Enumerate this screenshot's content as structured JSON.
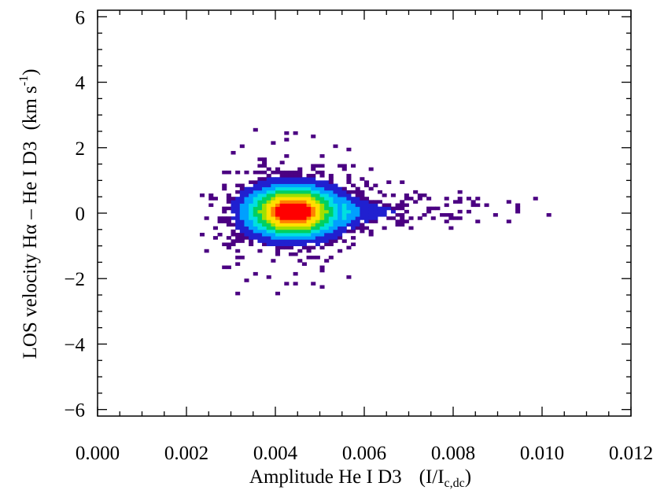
{
  "chart_data": {
    "type": "heatmap",
    "xlabel": "Amplitude He I D3",
    "xlabel_unit": {
      "main": "(I/I",
      "sub": "c,dc",
      "close": ")"
    },
    "ylabel": "LOS velocity Hα – He I D3",
    "ylabel_unit": {
      "main": "(km s",
      "sup": "-1",
      "close": ")"
    },
    "xlim": [
      0.0,
      0.012
    ],
    "ylim": [
      -6.2,
      6.2
    ],
    "x_ticks": [
      "0.000",
      "0.002",
      "0.004",
      "0.006",
      "0.008",
      "0.010",
      "0.012"
    ],
    "x_tick_values": [
      0.0,
      0.002,
      0.004,
      0.006,
      0.008,
      0.01,
      0.012
    ],
    "y_ticks": [
      "−6",
      "−4",
      "−2",
      "0",
      "2",
      "4",
      "6"
    ],
    "y_tick_values": [
      -6,
      -4,
      -2,
      0,
      2,
      4,
      6
    ],
    "grid": false,
    "colormap": [
      "#4b0082",
      "#2020d0",
      "#00a0ff",
      "#00e0e0",
      "#00d060",
      "#a0e000",
      "#ffe000",
      "#ff8000",
      "#ff0000"
    ],
    "density_model": {
      "core": {
        "x": 0.00435,
        "y": 0.0,
        "peak": 1.0
      },
      "tail": {
        "x_start": 0.0055,
        "x_end": 0.0105,
        "y": 0.0
      }
    }
  }
}
